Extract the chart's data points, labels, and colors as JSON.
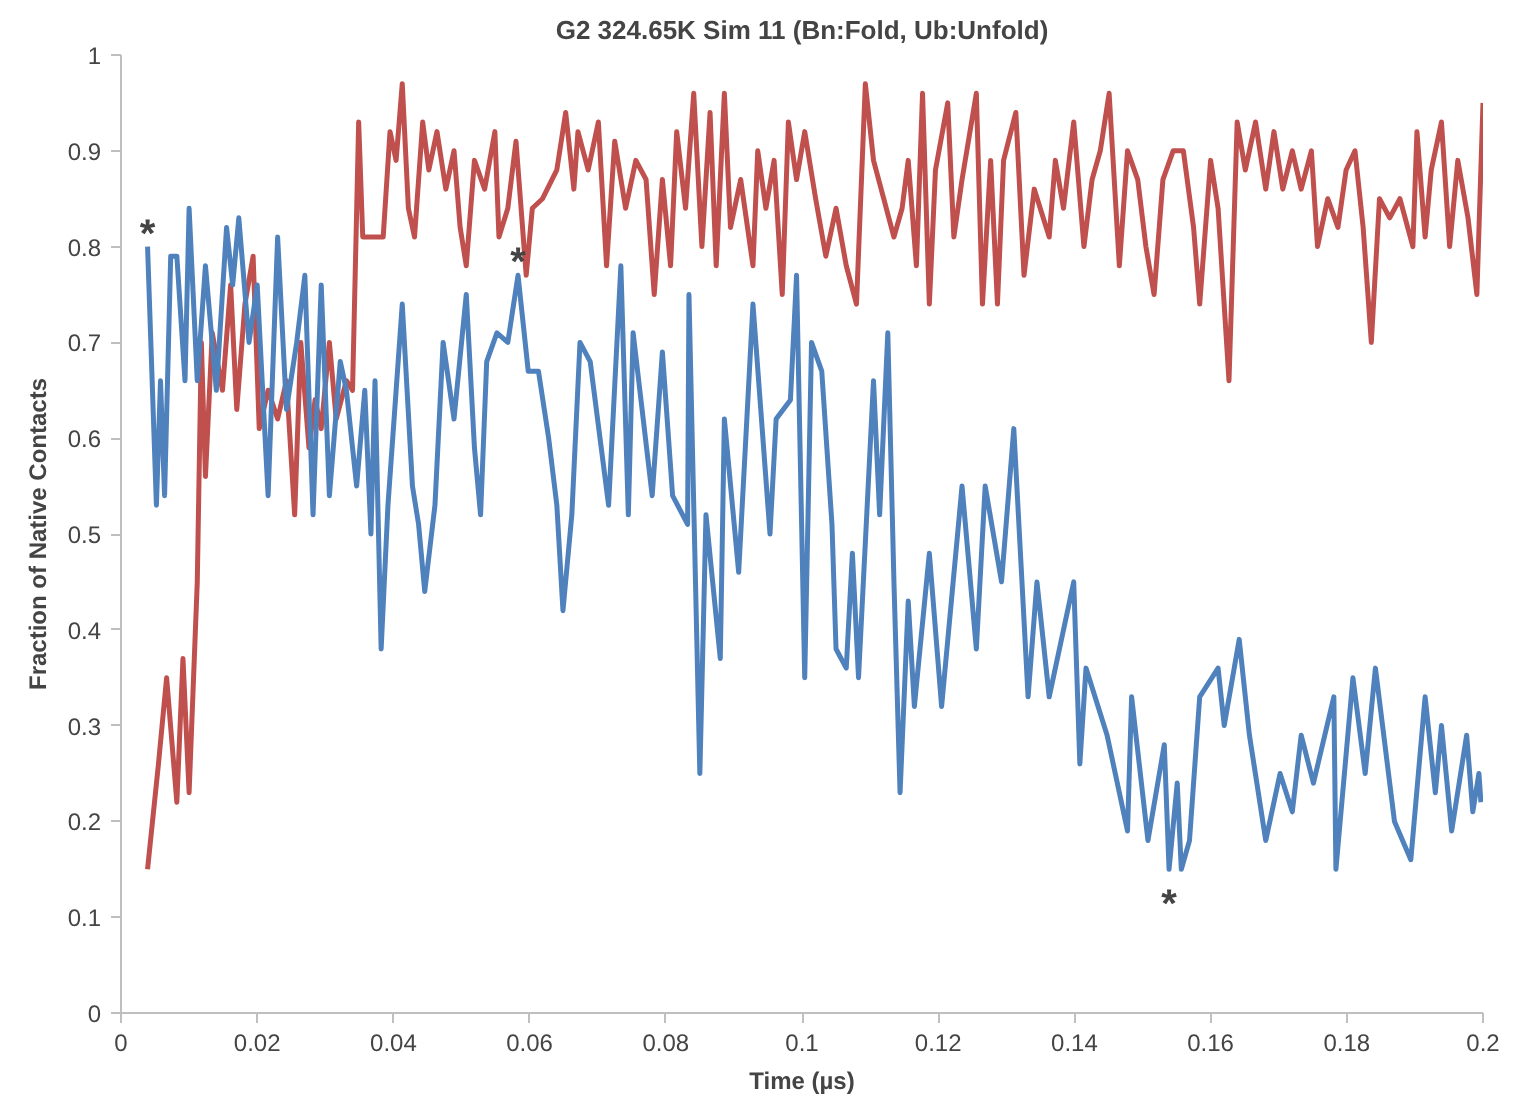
{
  "chart_data": {
    "type": "line",
    "title": "G2 324.65K Sim 11 (Bn:Fold, Ub:Unfold)",
    "xlabel": "Time (µs)",
    "ylabel": "Fraction of Native Contacts",
    "xlim": [
      0,
      0.2
    ],
    "ylim": [
      0,
      1
    ],
    "xticks": [
      0,
      0.02,
      0.04,
      0.06,
      0.08,
      0.1,
      0.12,
      0.14,
      0.16,
      0.18,
      0.2
    ],
    "yticks": [
      0,
      0.1,
      0.2,
      0.3,
      0.4,
      0.5,
      0.6,
      0.7,
      0.8,
      0.9,
      1
    ],
    "grid": false,
    "marker": "none",
    "line_style": "solid",
    "series": [
      {
        "color": "#c0504d",
        "x": [
          0.0039,
          0.0055,
          0.0067,
          0.0082,
          0.0091,
          0.01,
          0.0112,
          0.0118,
          0.0124,
          0.0134,
          0.0149,
          0.0161,
          0.017,
          0.0182,
          0.0194,
          0.0203,
          0.0216,
          0.023,
          0.0243,
          0.0255,
          0.0264,
          0.0276,
          0.0285,
          0.0294,
          0.0306,
          0.0316,
          0.0331,
          0.034,
          0.0349,
          0.0355,
          0.037,
          0.0385,
          0.0395,
          0.0404,
          0.0413,
          0.0422,
          0.0431,
          0.0443,
          0.0452,
          0.0464,
          0.0477,
          0.0489,
          0.0498,
          0.0507,
          0.0519,
          0.0534,
          0.0549,
          0.0555,
          0.0568,
          0.058,
          0.0595,
          0.0604,
          0.0619,
          0.064,
          0.0653,
          0.0665,
          0.0671,
          0.0686,
          0.0701,
          0.0713,
          0.0725,
          0.0741,
          0.0756,
          0.0771,
          0.0783,
          0.0795,
          0.0807,
          0.0816,
          0.0829,
          0.0841,
          0.0853,
          0.0865,
          0.0874,
          0.0886,
          0.0895,
          0.091,
          0.0928,
          0.0935,
          0.0947,
          0.0959,
          0.0971,
          0.098,
          0.0992,
          0.1004,
          0.102,
          0.1035,
          0.105,
          0.1065,
          0.108,
          0.1093,
          0.1105,
          0.112,
          0.1135,
          0.1147,
          0.1156,
          0.1168,
          0.1177,
          0.1187,
          0.1196,
          0.1214,
          0.1223,
          0.1235,
          0.1256,
          0.1265,
          0.1277,
          0.1287,
          0.1296,
          0.1314,
          0.1326,
          0.1341,
          0.1363,
          0.1372,
          0.1384,
          0.1399,
          0.1414,
          0.1426,
          0.1438,
          0.1451,
          0.1466,
          0.1478,
          0.1493,
          0.1505,
          0.1517,
          0.153,
          0.1545,
          0.156,
          0.1575,
          0.1584,
          0.16,
          0.1611,
          0.1627,
          0.1639,
          0.1651,
          0.1666,
          0.1681,
          0.1693,
          0.1706,
          0.172,
          0.1733,
          0.1748,
          0.1757,
          0.1772,
          0.1787,
          0.1799,
          0.1812,
          0.1824,
          0.1836,
          0.1848,
          0.1863,
          0.1878,
          0.1897,
          0.1903,
          0.1915,
          0.1924,
          0.1939,
          0.1951,
          0.1963,
          0.1978,
          0.1991,
          0.2
        ],
        "values": [
          0.15,
          0.26,
          0.35,
          0.22,
          0.37,
          0.23,
          0.45,
          0.7,
          0.56,
          0.71,
          0.65,
          0.76,
          0.63,
          0.74,
          0.79,
          0.61,
          0.65,
          0.62,
          0.66,
          0.52,
          0.7,
          0.59,
          0.64,
          0.61,
          0.7,
          0.62,
          0.66,
          0.65,
          0.93,
          0.81,
          0.81,
          0.81,
          0.92,
          0.89,
          0.97,
          0.84,
          0.81,
          0.93,
          0.88,
          0.92,
          0.86,
          0.9,
          0.82,
          0.78,
          0.89,
          0.86,
          0.92,
          0.81,
          0.84,
          0.91,
          0.77,
          0.84,
          0.85,
          0.88,
          0.94,
          0.86,
          0.92,
          0.88,
          0.93,
          0.78,
          0.91,
          0.84,
          0.89,
          0.87,
          0.75,
          0.87,
          0.78,
          0.92,
          0.84,
          0.96,
          0.8,
          0.94,
          0.78,
          0.96,
          0.82,
          0.87,
          0.78,
          0.9,
          0.84,
          0.89,
          0.75,
          0.93,
          0.87,
          0.92,
          0.85,
          0.79,
          0.84,
          0.78,
          0.74,
          0.97,
          0.89,
          0.85,
          0.81,
          0.84,
          0.89,
          0.78,
          0.96,
          0.74,
          0.88,
          0.95,
          0.81,
          0.87,
          0.96,
          0.74,
          0.89,
          0.74,
          0.89,
          0.94,
          0.77,
          0.86,
          0.81,
          0.89,
          0.84,
          0.93,
          0.8,
          0.87,
          0.9,
          0.96,
          0.78,
          0.9,
          0.87,
          0.8,
          0.75,
          0.87,
          0.9,
          0.9,
          0.82,
          0.74,
          0.89,
          0.84,
          0.66,
          0.93,
          0.88,
          0.93,
          0.86,
          0.92,
          0.86,
          0.9,
          0.86,
          0.9,
          0.8,
          0.85,
          0.82,
          0.88,
          0.9,
          0.82,
          0.7,
          0.85,
          0.83,
          0.85,
          0.8,
          0.92,
          0.81,
          0.88,
          0.93,
          0.8,
          0.89,
          0.83,
          0.75,
          0.95
        ]
      },
      {
        "color": "#4f81bd",
        "x": [
          0.0039,
          0.0052,
          0.0058,
          0.0064,
          0.0073,
          0.0082,
          0.0094,
          0.01,
          0.0112,
          0.0124,
          0.014,
          0.0155,
          0.0164,
          0.0173,
          0.0188,
          0.02,
          0.0216,
          0.023,
          0.0243,
          0.0258,
          0.027,
          0.0282,
          0.0294,
          0.0306,
          0.0322,
          0.0331,
          0.0346,
          0.0358,
          0.0367,
          0.0373,
          0.0382,
          0.0392,
          0.0413,
          0.0428,
          0.0437,
          0.0446,
          0.0461,
          0.0473,
          0.0489,
          0.0507,
          0.0519,
          0.0528,
          0.0537,
          0.0552,
          0.0568,
          0.0583,
          0.0598,
          0.0613,
          0.0628,
          0.064,
          0.0649,
          0.0662,
          0.0674,
          0.0689,
          0.0716,
          0.0734,
          0.0745,
          0.0752,
          0.078,
          0.0795,
          0.081,
          0.0832,
          0.0834,
          0.085,
          0.0859,
          0.088,
          0.0886,
          0.0907,
          0.0928,
          0.0953,
          0.0962,
          0.0983,
          0.0992,
          0.1004,
          0.1014,
          0.1029,
          0.1044,
          0.105,
          0.1065,
          0.1074,
          0.1083,
          0.1105,
          0.1114,
          0.1126,
          0.1135,
          0.1144,
          0.1156,
          0.1165,
          0.1187,
          0.1205,
          0.1235,
          0.1256,
          0.1269,
          0.1293,
          0.1311,
          0.1332,
          0.1345,
          0.1363,
          0.1399,
          0.1408,
          0.1417,
          0.1448,
          0.1478,
          0.1484,
          0.1508,
          0.1532,
          0.1539,
          0.1551,
          0.1557,
          0.1569,
          0.1584,
          0.1611,
          0.162,
          0.1642,
          0.1657,
          0.1681,
          0.1702,
          0.172,
          0.1733,
          0.1751,
          0.1781,
          0.1784,
          0.1809,
          0.1827,
          0.1842,
          0.187,
          0.1894,
          0.1915,
          0.193,
          0.1939,
          0.1954,
          0.1976,
          0.1985,
          0.1994,
          0.1997
        ],
        "values": [
          0.8,
          0.53,
          0.66,
          0.54,
          0.79,
          0.79,
          0.66,
          0.84,
          0.66,
          0.78,
          0.65,
          0.82,
          0.76,
          0.83,
          0.7,
          0.76,
          0.54,
          0.81,
          0.63,
          0.7,
          0.77,
          0.52,
          0.76,
          0.54,
          0.68,
          0.65,
          0.55,
          0.65,
          0.5,
          0.66,
          0.38,
          0.53,
          0.74,
          0.55,
          0.51,
          0.44,
          0.53,
          0.7,
          0.62,
          0.75,
          0.59,
          0.52,
          0.68,
          0.71,
          0.7,
          0.77,
          0.67,
          0.67,
          0.6,
          0.53,
          0.42,
          0.52,
          0.7,
          0.68,
          0.53,
          0.78,
          0.52,
          0.71,
          0.54,
          0.69,
          0.54,
          0.51,
          0.75,
          0.25,
          0.52,
          0.37,
          0.62,
          0.46,
          0.74,
          0.5,
          0.62,
          0.64,
          0.77,
          0.35,
          0.7,
          0.67,
          0.51,
          0.38,
          0.36,
          0.48,
          0.35,
          0.66,
          0.52,
          0.71,
          0.45,
          0.23,
          0.43,
          0.32,
          0.48,
          0.32,
          0.55,
          0.38,
          0.55,
          0.45,
          0.61,
          0.33,
          0.45,
          0.33,
          0.45,
          0.26,
          0.36,
          0.29,
          0.19,
          0.33,
          0.18,
          0.28,
          0.15,
          0.24,
          0.15,
          0.18,
          0.33,
          0.36,
          0.3,
          0.39,
          0.29,
          0.18,
          0.25,
          0.21,
          0.29,
          0.24,
          0.33,
          0.15,
          0.35,
          0.25,
          0.36,
          0.2,
          0.16,
          0.33,
          0.23,
          0.3,
          0.19,
          0.29,
          0.21,
          0.25,
          0.22
        ]
      }
    ],
    "annotations": [
      {
        "text": "*",
        "x": 0.0039,
        "y": 0.8
      },
      {
        "text": "*",
        "x": 0.0583,
        "y": 0.77
      },
      {
        "text": "*",
        "x": 0.1539,
        "y": 0.15
      }
    ]
  }
}
